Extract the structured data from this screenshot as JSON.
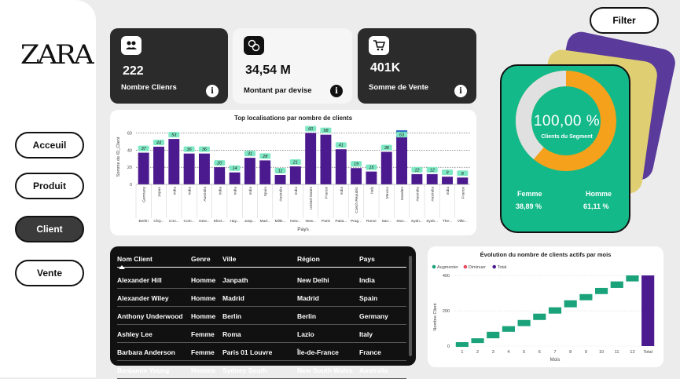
{
  "brand": "ZARA",
  "nav": [
    "Acceuil",
    "Produit",
    "Client",
    "Vente"
  ],
  "filter_label": "Filter",
  "kpis": [
    {
      "value": "222",
      "label": "Nombre Clienrs",
      "icon": "hand-coins-icon"
    },
    {
      "value": "34,54 M",
      "label": "Montant par devise",
      "icon": "currency-exchange-icon"
    },
    {
      "value": "401K",
      "label": "Somme de Vente",
      "icon": "shopping-cart-icon"
    }
  ],
  "info_glyph": "i",
  "segment": {
    "percent": "100,00 %",
    "label": "Clients du Segment",
    "female_label": "Femme",
    "female_value": "38,89 %",
    "male_label": "Homme",
    "male_value": "61,11 %",
    "female_share": 0.3889,
    "colors": {
      "female": "#e0e0e0",
      "male": "#f5a11b"
    }
  },
  "chart_data": [
    {
      "type": "bar",
      "title": "Top localisations par nombre de clients",
      "xlabel": "Pays",
      "ylabel": "Somme de ID_Client",
      "ylim": [
        0,
        65
      ],
      "yticks": [
        0,
        20,
        40,
        60
      ],
      "categories": [
        "Berlin",
        "Chiy...",
        "Con...",
        "Com...",
        "Dew...",
        "Elect...",
        "Hay...",
        "Janp...",
        "Mad...",
        "Mille...",
        "New...",
        "New...",
        "Paris",
        "Patia...",
        "Prag...",
        "Rome",
        "San...",
        "Stoc...",
        "Sydn...",
        "Sydn...",
        "The...",
        "Ville..."
      ],
      "countries": [
        "Germany",
        "Japan",
        "India",
        "India",
        "Australia",
        "India",
        "India",
        "India",
        "Spain",
        "Australia",
        "India",
        "United States",
        "France",
        "India",
        "Czech Republic",
        "Italy",
        "Mexico",
        "Sweden",
        "Australia",
        "Australia",
        "India",
        "France"
      ],
      "values": [
        37,
        44,
        53,
        36,
        36,
        20,
        14,
        31,
        28,
        11,
        21,
        60,
        58,
        41,
        19,
        15,
        38,
        63,
        12,
        12,
        9,
        8
      ],
      "bar_color": "#4b1a8f",
      "label_bg": "#7ee8c4"
    },
    {
      "type": "bar",
      "title": "Évolution du nombre de clients actifs par mois",
      "xlabel": "Mois",
      "ylabel": "Nombre Client",
      "ylim": [
        0,
        450
      ],
      "yticks": [
        0,
        200,
        400
      ],
      "categories": [
        "1",
        "2",
        "3",
        "4",
        "5",
        "6",
        "7",
        "8",
        "9",
        "10",
        "11",
        "12",
        "Total"
      ],
      "values": [
        22,
        44,
        81,
        113,
        148,
        184,
        220,
        260,
        295,
        330,
        367,
        401,
        401
      ],
      "legend": [
        "Augmenter",
        "Diminuer",
        "Total"
      ],
      "legend_colors": [
        "#1aa37a",
        "#e84a5f",
        "#4b1a8f"
      ]
    }
  ],
  "table": {
    "headers": [
      "Nom Client",
      "Genre",
      "Ville",
      "Région",
      "Pays"
    ],
    "rows": [
      [
        "Alexander Hill",
        "Homme",
        "Janpath",
        "New Delhi",
        "India"
      ],
      [
        "Alexander Wiley",
        "Homme",
        "Madrid",
        "Madrid",
        "Spain"
      ],
      [
        "Anthony Underwood",
        "Homme",
        "Berlin",
        "Berlin",
        "Germany"
      ],
      [
        "Ashley Lee",
        "Femme",
        "Roma",
        "Lazio",
        "Italy"
      ],
      [
        "Barbara Anderson",
        "Femme",
        "Paris 01 Louvre",
        "Île-de-France",
        "France"
      ],
      [
        "Benjamin Young",
        "Homme",
        "Sydney South",
        "New South Wales",
        "Australia"
      ]
    ]
  }
}
